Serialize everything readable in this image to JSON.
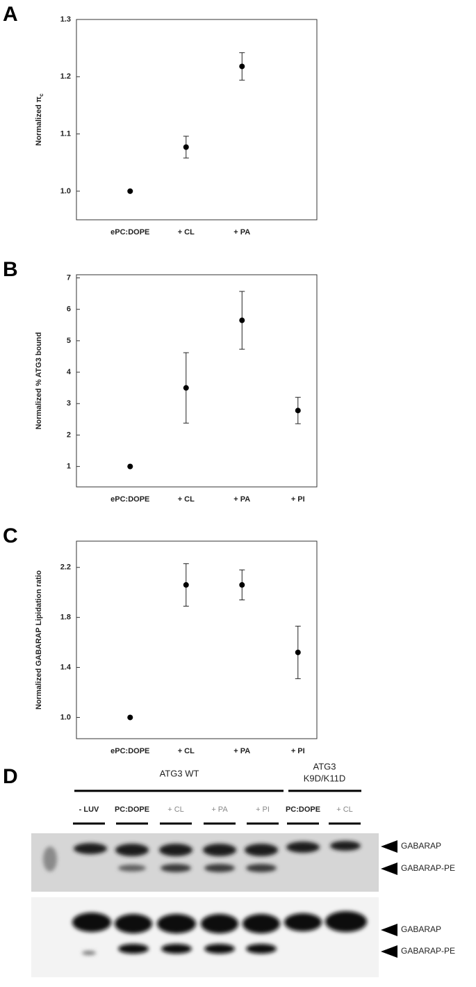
{
  "chart_data": [
    {
      "type": "point",
      "panel": "A",
      "ylabel": "Normalized π",
      "ylabel_sub": "c",
      "categories": [
        "ePC:DOPE",
        "+ CL",
        "+ PA"
      ],
      "values": [
        1.0,
        1.077,
        1.218
      ],
      "errors": [
        0,
        0.019,
        0.024
      ],
      "color": "#000000",
      "ylim": [
        0.95,
        1.3
      ],
      "yticks": [
        {
          "value": 1.0,
          "label": "1.0"
        },
        1.1,
        1.2,
        1.3
      ]
    },
    {
      "type": "point",
      "panel": "B",
      "ylabel": "Normalized % ATG3 bound",
      "categories": [
        "ePC:DOPE",
        "+ CL",
        "+ PA",
        "+ PI"
      ],
      "values": [
        1.0,
        3.5,
        5.65,
        2.78
      ],
      "errors": [
        0,
        1.12,
        0.92,
        0.42
      ],
      "color": "#000000",
      "ylim": [
        0.35,
        7.1
      ],
      "yticks": [
        1,
        2,
        3,
        4,
        5,
        6,
        7
      ]
    },
    {
      "type": "point",
      "panel": "C",
      "ylabel": "Normalized GABARAP Lipidation ratio",
      "categories": [
        "ePC:DOPE",
        "+ CL",
        "+ PA",
        "+ PI"
      ],
      "values": [
        1.0,
        2.06,
        2.06,
        1.52
      ],
      "errors": [
        0,
        0.17,
        0.12,
        0.21
      ],
      "color": "#000000",
      "ylim": [
        0.83,
        2.41
      ],
      "yticks": [
        {
          "value": 1.0,
          "label": "1.0"
        },
        1.4,
        1.8,
        2.2
      ]
    }
  ],
  "blot": {
    "panel": "D",
    "group_wt": "ATG3 WT",
    "group_mut": [
      "ATG3",
      "K9D/K11D"
    ],
    "lanes": [
      "- LUV",
      "PC:DOPE",
      "+ CL",
      "+ PA",
      "+ PI",
      "PC:DOPE",
      "+ CL"
    ],
    "bands": [
      "GABARAP",
      "GABARAP-PE",
      "GABARAP",
      "GABARAP-PE"
    ]
  }
}
